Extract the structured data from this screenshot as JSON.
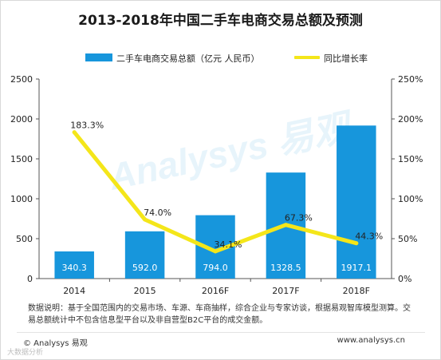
{
  "chart_data": {
    "type": "bar",
    "title": "2013-2018年中国二手车电商交易总额及预测",
    "categories": [
      "2014",
      "2015",
      "2016F",
      "2017F",
      "2018F"
    ],
    "series": [
      {
        "name": "二手车电商交易总额（亿元 人民币）",
        "type": "bar",
        "axis": "left",
        "values": [
          340.3,
          592.0,
          794.0,
          1328.5,
          1917.1
        ],
        "labels": [
          "340.3",
          "592.0",
          "794.0",
          "1328.5",
          "1917.1"
        ],
        "color": "#1796dc"
      },
      {
        "name": "同比增长率",
        "type": "line",
        "axis": "right",
        "values": [
          183.3,
          74.0,
          34.1,
          67.3,
          44.3
        ],
        "labels": [
          "183.3%",
          "74.0%",
          "34.1%",
          "67.3%",
          "44.3%"
        ],
        "color": "#f4e61a"
      }
    ],
    "y_left": {
      "ylim": [
        0,
        2500
      ],
      "ticks": [
        "0",
        "500",
        "1000",
        "1500",
        "2000",
        "2500"
      ]
    },
    "y_right": {
      "ylim": [
        0,
        250
      ],
      "ticks": [
        "0%",
        "50%",
        "100%",
        "150%",
        "200%",
        "250%"
      ]
    },
    "legend_position": "top",
    "grid": false
  },
  "note": "数据说明：基于全国范围内的交易市场、车源、车商抽样，综合企业与专家访谈，根据易观智库模型测算。交易总额统计中不包含信息型平台以及非自营型B2C平台的成交金额。",
  "footer": {
    "left": "© Analysys 易观",
    "right": "www.analysys.cn"
  },
  "watermark": {
    "logo_text": "Analysys 易观",
    "site_text": "大数据分析"
  }
}
